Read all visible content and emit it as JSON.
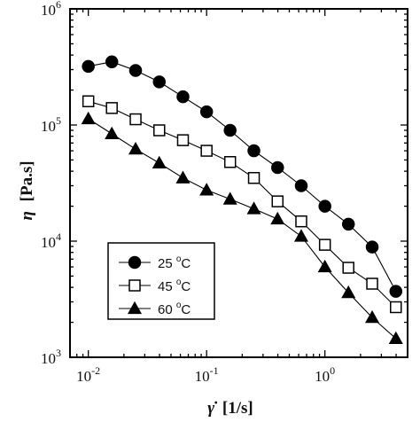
{
  "chart_data": {
    "type": "scatter",
    "xscale": "log",
    "yscale": "log",
    "xlim": [
      0.007,
      5
    ],
    "ylim": [
      1000,
      1000000
    ],
    "xlabel": {
      "var": "γ̇",
      "unit": "[1/s]"
    },
    "ylabel": {
      "var": "η",
      "unit": "[Pa.s]"
    },
    "x_ticks": [
      {
        "value": 0.01,
        "base": "10",
        "exp": "-2"
      },
      {
        "value": 0.1,
        "base": "10",
        "exp": "-1"
      },
      {
        "value": 1,
        "base": "10",
        "exp": "0"
      }
    ],
    "y_ticks": [
      {
        "value": 1000,
        "base": "10",
        "exp": "3"
      },
      {
        "value": 10000,
        "base": "10",
        "exp": "4"
      },
      {
        "value": 100000,
        "base": "10",
        "exp": "5"
      },
      {
        "value": 1000000,
        "base": "10",
        "exp": "6"
      }
    ],
    "grid": false,
    "legend": {
      "placement": "bottom-left"
    },
    "series": [
      {
        "name": "25 °C",
        "label_num": "25",
        "label_unit": "C",
        "label_deg": "o",
        "marker": "circle",
        "filled": true,
        "color": "#000000",
        "x": [
          0.01,
          0.0158,
          0.0251,
          0.0398,
          0.0631,
          0.1,
          0.158,
          0.251,
          0.398,
          0.631,
          1.0,
          1.58,
          2.51,
          3.98
        ],
        "y": [
          320000,
          350000,
          295000,
          235000,
          175000,
          130000,
          90000,
          60000,
          43000,
          30000,
          20000,
          14000,
          8900,
          3700
        ]
      },
      {
        "name": "45 °C",
        "label_num": "45",
        "label_unit": "C",
        "label_deg": "o",
        "marker": "square",
        "filled": false,
        "color": "#000000",
        "x": [
          0.01,
          0.0158,
          0.0251,
          0.0398,
          0.0631,
          0.1,
          0.158,
          0.251,
          0.398,
          0.631,
          1.0,
          1.58,
          2.51,
          3.98
        ],
        "y": [
          160000,
          140000,
          112000,
          90000,
          74000,
          60000,
          48000,
          35000,
          22000,
          14800,
          9300,
          5900,
          4300,
          2700
        ]
      },
      {
        "name": "60 °C",
        "label_num": "60",
        "label_unit": "C",
        "label_deg": "o",
        "marker": "triangle",
        "filled": true,
        "color": "#000000",
        "x": [
          0.01,
          0.0158,
          0.0251,
          0.0398,
          0.0631,
          0.1,
          0.158,
          0.251,
          0.398,
          0.631,
          1.0,
          1.58,
          2.51,
          3.98
        ],
        "y": [
          113000,
          84000,
          62000,
          47000,
          35000,
          27500,
          23000,
          19000,
          15500,
          11000,
          6000,
          3600,
          2200,
          1450
        ]
      }
    ]
  }
}
